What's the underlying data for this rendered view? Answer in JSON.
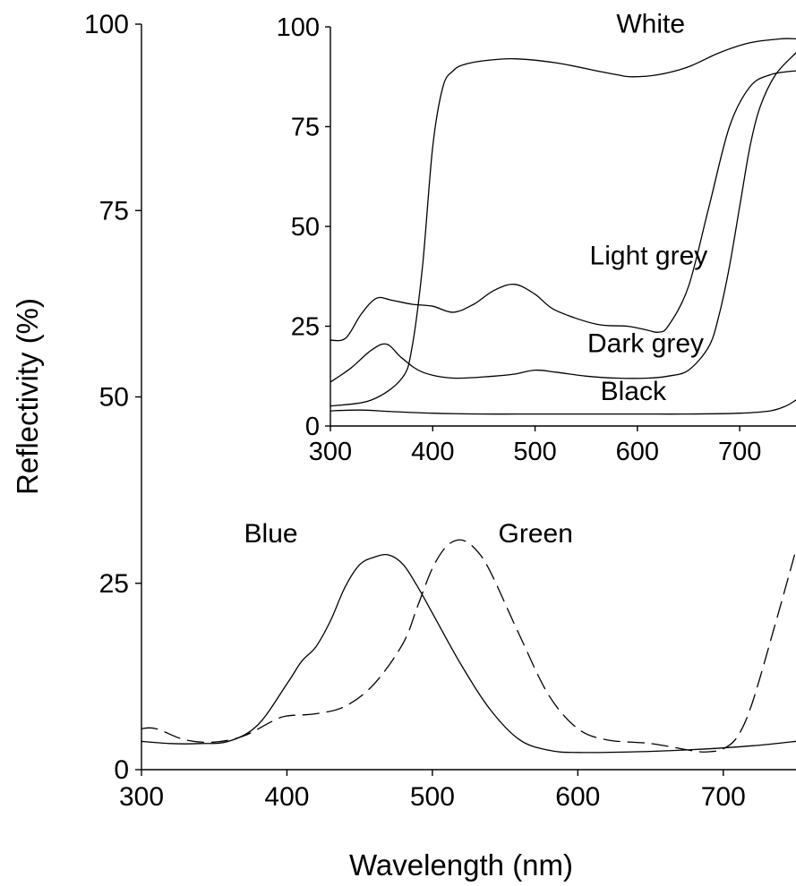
{
  "chart_data": [
    {
      "type": "line",
      "id": "main",
      "xlabel": "Wavelength (nm)",
      "ylabel": "Reflectivity (%)",
      "xlim": [
        300,
        750
      ],
      "ylim": [
        0,
        100
      ],
      "xticks": [
        300,
        400,
        500,
        600,
        700
      ],
      "yticks": [
        0,
        25,
        50,
        75,
        100
      ],
      "grid": false,
      "series": [
        {
          "name": "Blue",
          "dash": "solid",
          "x": [
            300,
            320,
            340,
            360,
            380,
            400,
            410,
            420,
            430,
            440,
            450,
            460,
            470,
            480,
            490,
            500,
            520,
            540,
            560,
            580,
            600,
            640,
            680,
            720,
            750
          ],
          "y": [
            3.8,
            3.5,
            3.5,
            3.8,
            6.0,
            11.5,
            14.5,
            16.5,
            20.0,
            24.5,
            27.5,
            28.5,
            28.8,
            27.5,
            24.5,
            21.0,
            14.0,
            8.0,
            4.0,
            2.6,
            2.3,
            2.4,
            2.7,
            3.2,
            3.8
          ]
        },
        {
          "name": "Green",
          "dash": "dashed",
          "x": [
            300,
            310,
            330,
            350,
            370,
            390,
            400,
            420,
            440,
            460,
            480,
            490,
            500,
            510,
            520,
            530,
            540,
            560,
            580,
            600,
            620,
            650,
            680,
            690,
            700,
            710,
            720,
            735,
            750
          ],
          "y": [
            5.5,
            5.5,
            4.0,
            3.7,
            4.5,
            6.5,
            7.2,
            7.5,
            8.5,
            11.5,
            17.0,
            22.0,
            27.0,
            30.0,
            30.8,
            29.5,
            26.5,
            18.0,
            10.0,
            5.5,
            4.0,
            3.5,
            2.5,
            2.4,
            2.8,
            4.5,
            9.0,
            19.0,
            29.5
          ]
        }
      ],
      "annotations": [
        {
          "text": "Blue",
          "x": 389,
          "y": 30.5
        },
        {
          "text": "Green",
          "x": 571,
          "y": 30.5
        }
      ]
    },
    {
      "type": "line",
      "id": "inset",
      "xlim": [
        300,
        755
      ],
      "ylim": [
        0,
        100
      ],
      "xticks": [
        300,
        400,
        500,
        600,
        700
      ],
      "yticks": [
        0,
        25,
        50,
        75,
        100
      ],
      "grid": false,
      "series": [
        {
          "name": "White",
          "x": [
            300,
            340,
            370,
            380,
            390,
            400,
            410,
            420,
            430,
            450,
            480,
            520,
            560,
            580,
            595,
            620,
            650,
            680,
            710,
            740,
            755
          ],
          "y": [
            5.0,
            6.5,
            12.0,
            20.0,
            40.0,
            70.0,
            85.0,
            89.0,
            90.5,
            91.5,
            92.0,
            91.0,
            89.0,
            88.0,
            87.5,
            88.0,
            90.0,
            93.5,
            96.0,
            97.0,
            97.0
          ]
        },
        {
          "name": "Light grey",
          "x": [
            300,
            315,
            330,
            345,
            360,
            380,
            400,
            420,
            440,
            460,
            480,
            500,
            520,
            560,
            590,
            610,
            620,
            630,
            650,
            670,
            690,
            710,
            730,
            755
          ],
          "y": [
            21.5,
            22.0,
            28.0,
            32.0,
            31.5,
            30.5,
            30.0,
            28.5,
            30.5,
            34.0,
            35.5,
            33.0,
            29.0,
            25.5,
            25.0,
            24.0,
            23.5,
            25.0,
            35.0,
            55.0,
            75.0,
            85.0,
            88.0,
            89.0
          ]
        },
        {
          "name": "Dark grey",
          "x": [
            300,
            320,
            340,
            355,
            370,
            390,
            420,
            460,
            480,
            500,
            520,
            550,
            580,
            610,
            630,
            650,
            670,
            680,
            690,
            700,
            710,
            720,
            735,
            755
          ],
          "y": [
            11.0,
            14.5,
            19.0,
            20.5,
            17.0,
            13.5,
            12.0,
            12.5,
            13.0,
            14.0,
            13.5,
            12.5,
            12.0,
            12.0,
            12.5,
            14.0,
            20.0,
            28.0,
            40.0,
            55.0,
            70.0,
            80.0,
            88.0,
            93.5
          ]
        },
        {
          "name": "Black",
          "x": [
            300,
            330,
            360,
            400,
            450,
            500,
            550,
            600,
            650,
            700,
            730,
            745,
            755
          ],
          "y": [
            3.8,
            4.0,
            3.6,
            3.2,
            3.0,
            3.0,
            3.0,
            3.0,
            3.0,
            3.2,
            3.8,
            5.0,
            6.5
          ]
        }
      ],
      "annotations": [
        {
          "text": "White",
          "x": 613,
          "y": 98.5
        },
        {
          "text": "Light grey",
          "x": 611,
          "y": 40.5
        },
        {
          "text": "Dark grey",
          "x": 608,
          "y": 18.5
        },
        {
          "text": "Black",
          "x": 596,
          "y": 6.5
        }
      ]
    }
  ]
}
